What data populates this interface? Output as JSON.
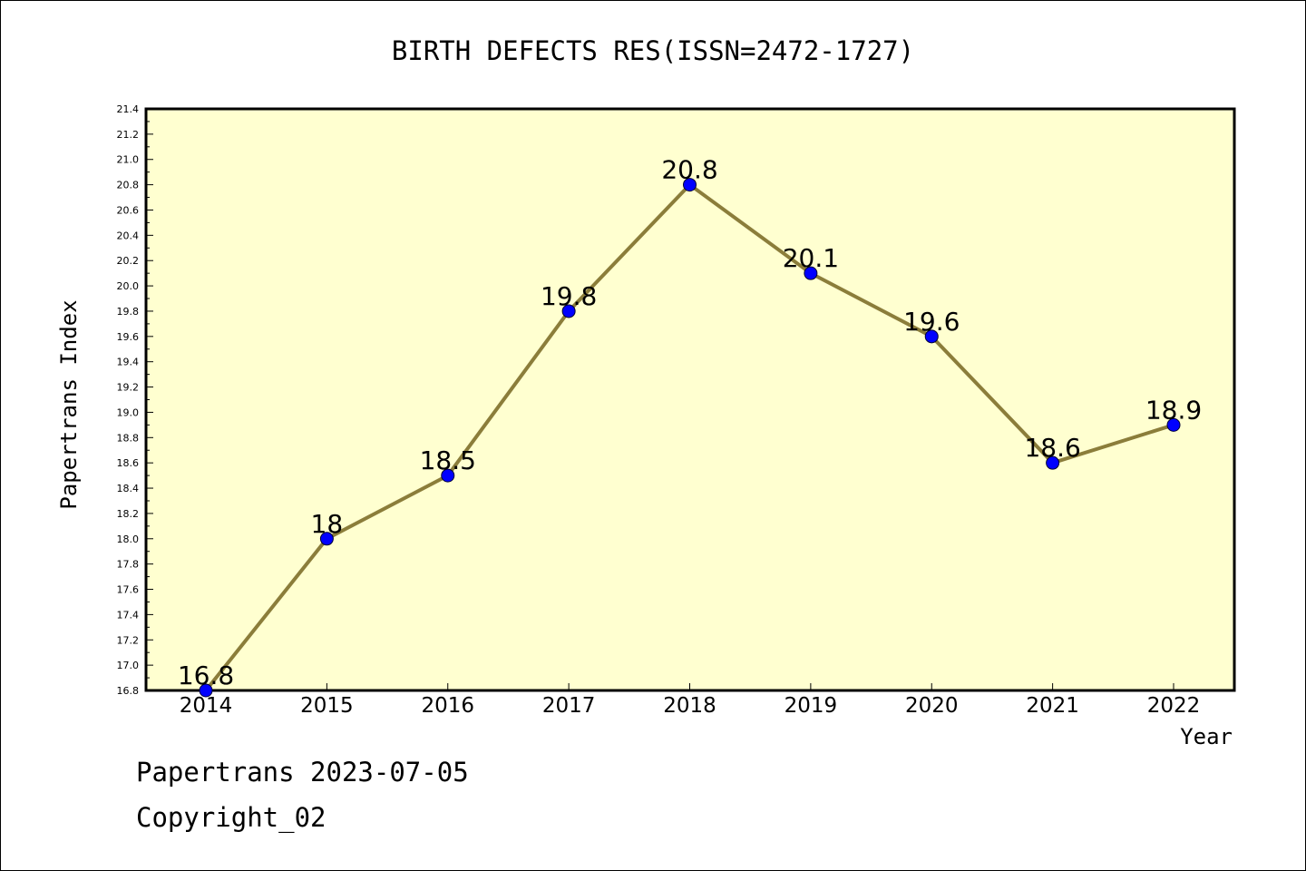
{
  "chart_data": {
    "type": "line",
    "title": "BIRTH DEFECTS RES(ISSN=2472-1727)",
    "xlabel": "Year",
    "ylabel": "Papertrans Index",
    "categories": [
      "2014",
      "2015",
      "2016",
      "2017",
      "2018",
      "2019",
      "2020",
      "2021",
      "2022"
    ],
    "series": [
      {
        "values": [
          16.8,
          18,
          18.5,
          19.8,
          20.8,
          20.1,
          19.6,
          18.6,
          18.9
        ]
      }
    ],
    "data_labels": [
      "16.8",
      "18",
      "18.5",
      "19.8",
      "20.8",
      "20.1",
      "19.6",
      "18.6",
      "18.9"
    ],
    "ylim": [
      16.8,
      21.4
    ],
    "y_ticks": [
      "16.8",
      "17.0",
      "17.2",
      "17.4",
      "17.6",
      "17.8",
      "18.0",
      "18.2",
      "18.4",
      "18.6",
      "18.8",
      "19.0",
      "19.2",
      "19.4",
      "19.6",
      "19.8",
      "20.0",
      "20.2",
      "20.4",
      "20.6",
      "20.8",
      "21.0",
      "21.2",
      "21.4"
    ],
    "grid": false,
    "colors": {
      "plot_background": "#ffffd0",
      "line": "#8b7d3a",
      "marker": "#0000ff"
    }
  },
  "footer": {
    "line1": "Papertrans 2023-07-05",
    "line2": "Copyright_02"
  }
}
